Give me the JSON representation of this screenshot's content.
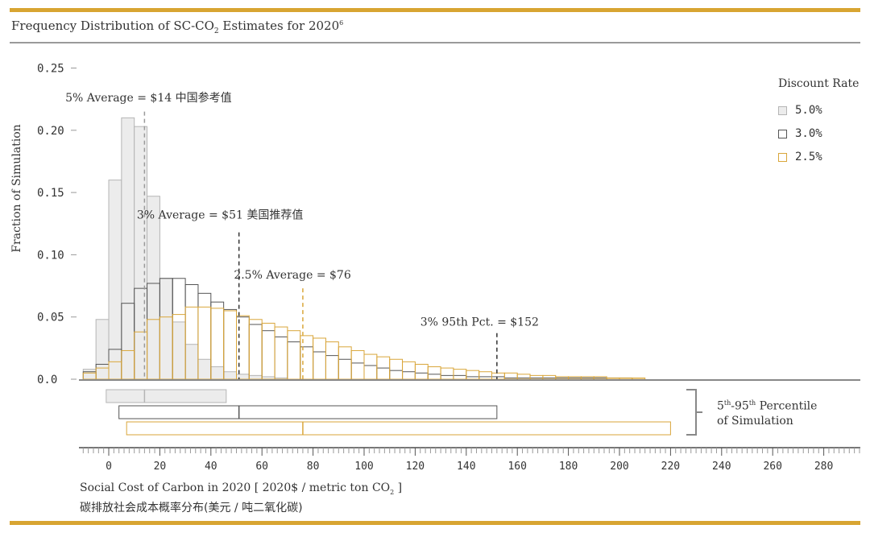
{
  "header": {
    "title_main": "Frequency Distribution of SC-CO",
    "title_sub": "2",
    "title_rest": " Estimates for 2020",
    "title_sup": "6"
  },
  "legend": {
    "title": "Discount Rate",
    "items": [
      {
        "label": "5.0%",
        "fill": "#ececec",
        "stroke": "#b5b5b5"
      },
      {
        "label": "3.0%",
        "fill": "#ffffff",
        "stroke": "#555555"
      },
      {
        "label": "2.5%",
        "fill": "#ffffff",
        "stroke": "#d9a63a"
      }
    ]
  },
  "percentile": {
    "line1_a": "5",
    "line1_sup1": "th",
    "line1_b": "-95",
    "line1_sup2": "th",
    "line1_c": " Percentile",
    "line2": "of Simulation"
  },
  "xlabel": {
    "main": "Social Cost of Carbon in 2020 [ 2020$ / metric ton CO",
    "sub": "2",
    "end": " ]",
    "cn": "碳排放社会成本概率分布(美元 / 吨二氧化碳)"
  },
  "chart_data": {
    "type": "bar",
    "ylabel": "Fraction of Simulation",
    "ylim": [
      0,
      0.25
    ],
    "yticks": [
      {
        "v": 0,
        "label": "0.0"
      },
      {
        "v": 0.05,
        "label": "0.05"
      },
      {
        "v": 0.1,
        "label": "0.10"
      },
      {
        "v": 0.15,
        "label": "0.15"
      },
      {
        "v": 0.2,
        "label": "0.20"
      },
      {
        "v": 0.25,
        "label": "0.25"
      }
    ],
    "xlim": [
      -10,
      295
    ],
    "xticks": [
      0,
      20,
      40,
      60,
      80,
      100,
      120,
      140,
      160,
      180,
      200,
      220,
      240,
      260,
      280
    ],
    "bin_width": 5,
    "series": [
      {
        "name": "5.0%",
        "fill": "#ececec",
        "stroke": "#b5b5b5",
        "bins_start": -10,
        "values": [
          0.008,
          0.048,
          0.16,
          0.21,
          0.203,
          0.147,
          0.081,
          0.046,
          0.028,
          0.016,
          0.01,
          0.006,
          0.004,
          0.003,
          0.002,
          0.001
        ]
      },
      {
        "name": "3.0%",
        "fill": "none",
        "stroke": "#555555",
        "bins_start": -10,
        "values": [
          0.006,
          0.012,
          0.024,
          0.061,
          0.073,
          0.077,
          0.081,
          0.081,
          0.076,
          0.069,
          0.062,
          0.056,
          0.05,
          0.044,
          0.039,
          0.034,
          0.03,
          0.026,
          0.022,
          0.019,
          0.016,
          0.013,
          0.011,
          0.009,
          0.007,
          0.006,
          0.005,
          0.004,
          0.003,
          0.003,
          0.002,
          0.002,
          0.002,
          0.001,
          0.001,
          0.001,
          0.001,
          0.001,
          0.001,
          0.001,
          0.001,
          0.001,
          0.001
        ]
      },
      {
        "name": "2.5%",
        "fill": "none",
        "stroke": "#d9a63a",
        "bins_start": -10,
        "values": [
          0.005,
          0.009,
          0.014,
          0.023,
          0.038,
          0.048,
          0.05,
          0.052,
          0.058,
          0.058,
          0.057,
          0.055,
          0.051,
          0.048,
          0.045,
          0.042,
          0.039,
          0.035,
          0.033,
          0.03,
          0.026,
          0.023,
          0.02,
          0.018,
          0.016,
          0.014,
          0.012,
          0.01,
          0.009,
          0.008,
          0.007,
          0.006,
          0.005,
          0.005,
          0.004,
          0.003,
          0.003,
          0.002,
          0.002,
          0.002,
          0.002,
          0.001,
          0.001,
          0.001
        ]
      }
    ],
    "reference_lines": [
      {
        "x": 14,
        "y_top": 0.215,
        "color": "#9a9a9a",
        "label": "5% Average = $14 中国参考值",
        "label_x": -17,
        "label_y": 0.223
      },
      {
        "x": 51,
        "y_top": 0.118,
        "color": "#333333",
        "label": "3% Average = $51 美国推荐值",
        "label_x": 11,
        "label_y": 0.129
      },
      {
        "x": 76,
        "y_top": 0.073,
        "color": "#d9a63a",
        "label": "2.5% Average = $76",
        "label_x": 49,
        "label_y": 0.081
      },
      {
        "x": 152,
        "y_top": 0.037,
        "color": "#333333",
        "label": "3% 95th Pct. = $152",
        "label_x": 122,
        "label_y": 0.043
      }
    ],
    "percentile_ranges": [
      {
        "series": "5.0%",
        "low": -1,
        "mean": 14,
        "high": 46,
        "fill": "#ececec",
        "stroke": "#b5b5b5"
      },
      {
        "series": "3.0%",
        "low": 4,
        "mean": 51,
        "high": 152,
        "fill": "#ffffff",
        "stroke": "#555555"
      },
      {
        "series": "2.5%",
        "low": 7,
        "mean": 76,
        "high": 220,
        "fill": "#ffffff",
        "stroke": "#d9a63a"
      }
    ]
  }
}
